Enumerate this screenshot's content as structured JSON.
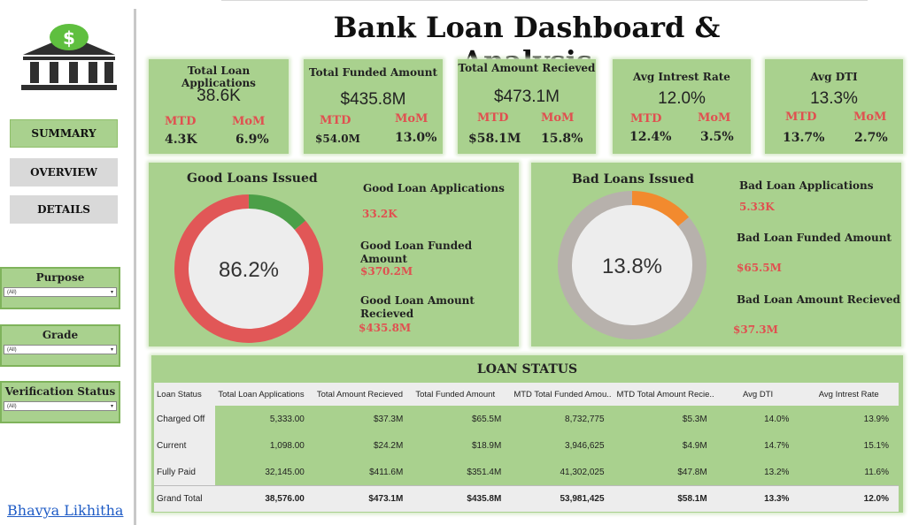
{
  "title": "Bank Loan Dashboard & Analysis",
  "colors": {
    "panel": "#a9d18e",
    "accent_red": "#e05050",
    "good_green": "#4c9f48",
    "bad_orange": "#f28a2e",
    "ring_red": "#e15757",
    "ring_gray": "#b7b1ac"
  },
  "nav": {
    "summary": "SUMMARY",
    "overview": "OVERVIEW",
    "details": "DETAILS"
  },
  "filters": {
    "purpose": {
      "label": "Purpose",
      "value": "(All)"
    },
    "grade": {
      "label": "Grade",
      "value": "(All)"
    },
    "verification": {
      "label": "Verification Status",
      "value": "(All)"
    }
  },
  "kpis": [
    {
      "title": "Total Loan Applications",
      "value": "38.6K",
      "mtd_label": "MTD",
      "mom_label": "MoM",
      "mtd": "4.3K",
      "mom": "6.9%"
    },
    {
      "title": "Total Funded Amount",
      "value": "$435.8M",
      "mtd_label": "MTD",
      "mom_label": "MoM",
      "mtd": "$54.0M",
      "mom": "13.0%"
    },
    {
      "title": "Total Amount Recieved",
      "value": "$473.1M",
      "mtd_label": "MTD",
      "mom_label": "MoM",
      "mtd": "$58.1M",
      "mom": "15.8%"
    },
    {
      "title": "Avg Intrest Rate",
      "value": "12.0%",
      "mtd_label": "MTD",
      "mom_label": "MoM",
      "mtd": "12.4%",
      "mom": "3.5%"
    },
    {
      "title": "Avg DTI",
      "value": "13.3%",
      "mtd_label": "MTD",
      "mom_label": "MoM",
      "mtd": "13.7%",
      "mom": "2.7%"
    }
  ],
  "good": {
    "title": "Good Loans Issued",
    "percent": "86.2%",
    "fraction": 0.862,
    "applications_label": "Good Loan Applications",
    "applications": "33.2K",
    "funded_label": "Good Loan Funded Amount",
    "funded": "$370.2M",
    "received_label": "Good Loan Amount Recieved",
    "received": "$435.8M"
  },
  "bad": {
    "title": "Bad Loans Issued",
    "percent": "13.8%",
    "fraction": 0.138,
    "applications_label": "Bad Loan Applications",
    "applications": "5.33K",
    "funded_label": "Bad Loan Funded Amount",
    "funded": "$65.5M",
    "received_label": "Bad Loan Amount Recieved",
    "received": "$37.3M"
  },
  "loan_status": {
    "title": "LOAN STATUS",
    "headers": [
      "Loan Status",
      "Total Loan Applications",
      "Total Amount Recieved",
      "Total Funded Amount",
      "MTD Total Funded Amou..",
      "MTD Total Amount Recie..",
      "Avg DTI",
      "Avg Intrest Rate"
    ],
    "rows": [
      [
        "Charged Off",
        "5,333.00",
        "$37.3M",
        "$65.5M",
        "8,732,775",
        "$5.3M",
        "14.0%",
        "13.9%"
      ],
      [
        "Current",
        "1,098.00",
        "$24.2M",
        "$18.9M",
        "3,946,625",
        "$4.9M",
        "14.7%",
        "15.1%"
      ],
      [
        "Fully Paid",
        "32,145.00",
        "$411.6M",
        "$351.4M",
        "41,302,025",
        "$47.8M",
        "13.2%",
        "11.6%"
      ]
    ],
    "grand_total": [
      "Grand Total",
      "38,576.00",
      "$473.1M",
      "$435.8M",
      "53,981,425",
      "$58.1M",
      "13.3%",
      "12.0%"
    ]
  },
  "author": "Bhavya Likhitha",
  "icons": {
    "logo": "bank-dollar-icon",
    "dropdown": "caret-down-icon"
  }
}
